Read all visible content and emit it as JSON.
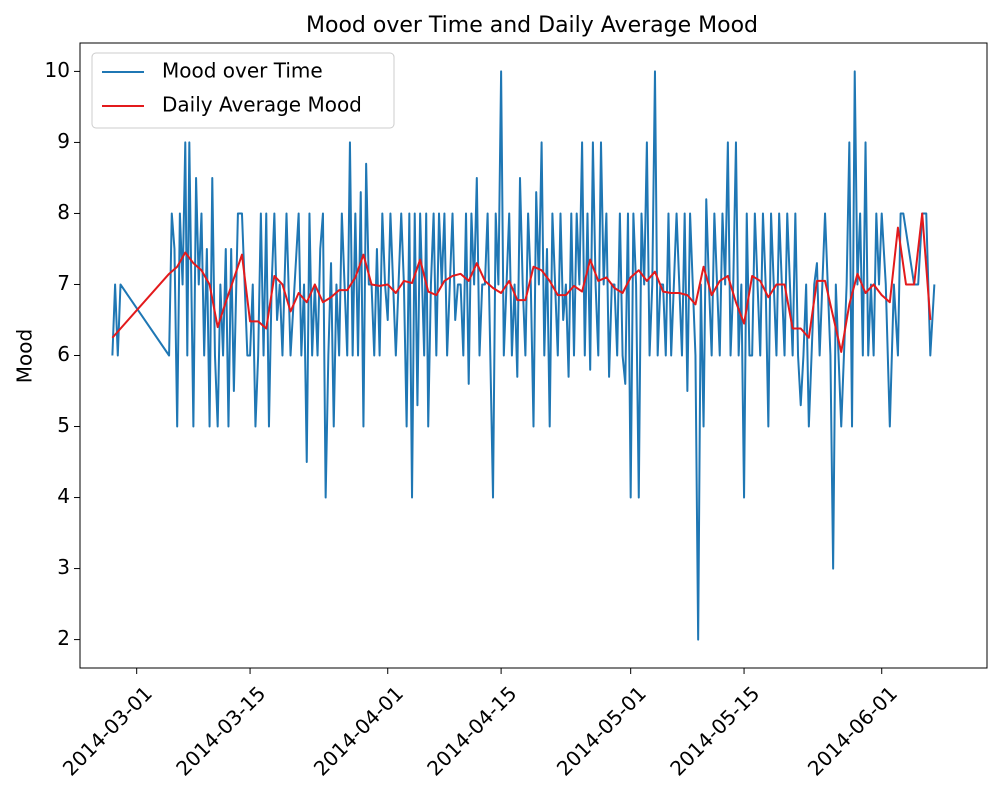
{
  "chart_data": {
    "type": "line",
    "title": "Mood over Time and Daily Average Mood",
    "y_label": "Mood",
    "xlim": [
      "2014-02-22",
      "2014-06-14"
    ],
    "xticks": [
      "2014-03-01",
      "2014-03-15",
      "2014-04-01",
      "2014-04-15",
      "2014-05-01",
      "2014-05-15",
      "2014-06-01"
    ],
    "ylim": [
      1.6,
      10.4
    ],
    "yticks": [
      2,
      3,
      4,
      5,
      6,
      7,
      8,
      9,
      10
    ],
    "grid": false,
    "legend": "upper left",
    "series": [
      {
        "name": "Mood over Time",
        "color": "#1f77b4",
        "x": [
          "2014-02-26",
          "2014-02-26",
          "2014-02-26",
          "2014-02-27",
          "2014-03-05",
          "2014-03-05",
          "2014-03-05",
          "2014-03-06",
          "2014-03-06",
          "2014-03-06",
          "2014-03-07",
          "2014-03-07",
          "2014-03-07",
          "2014-03-07",
          "2014-03-08",
          "2014-03-08",
          "2014-03-08",
          "2014-03-09",
          "2014-03-09",
          "2014-03-09",
          "2014-03-10",
          "2014-03-10",
          "2014-03-10",
          "2014-03-11",
          "2014-03-11",
          "2014-03-11",
          "2014-03-12",
          "2014-03-12",
          "2014-03-12",
          "2014-03-13",
          "2014-03-13",
          "2014-03-14",
          "2014-03-14",
          "2014-03-14",
          "2014-03-15",
          "2014-03-15",
          "2014-03-15",
          "2014-03-16",
          "2014-03-16",
          "2014-03-16",
          "2014-03-17",
          "2014-03-17",
          "2014-03-17",
          "2014-03-18",
          "2014-03-18",
          "2014-03-18",
          "2014-03-19",
          "2014-03-19",
          "2014-03-20",
          "2014-03-20",
          "2014-03-21",
          "2014-03-21",
          "2014-03-21",
          "2014-03-22",
          "2014-03-22",
          "2014-03-22",
          "2014-03-23",
          "2014-03-23",
          "2014-03-23",
          "2014-03-24",
          "2014-03-24",
          "2014-03-24",
          "2014-03-25",
          "2014-03-25",
          "2014-03-25",
          "2014-03-26",
          "2014-03-26",
          "2014-03-26",
          "2014-03-27",
          "2014-03-27",
          "2014-03-27",
          "2014-03-28",
          "2014-03-28",
          "2014-03-28",
          "2014-03-29",
          "2014-03-29",
          "2014-03-29",
          "2014-03-30",
          "2014-03-30",
          "2014-03-30",
          "2014-03-31",
          "2014-03-31",
          "2014-03-31",
          "2014-04-01",
          "2014-04-01",
          "2014-04-01",
          "2014-04-02",
          "2014-04-02",
          "2014-04-02",
          "2014-04-03",
          "2014-04-03",
          "2014-04-03",
          "2014-04-04",
          "2014-04-04",
          "2014-04-04",
          "2014-04-05",
          "2014-04-05",
          "2014-04-05",
          "2014-04-05",
          "2014-04-06",
          "2014-04-06",
          "2014-04-06",
          "2014-04-07",
          "2014-04-07",
          "2014-04-07",
          "2014-04-08",
          "2014-04-08",
          "2014-04-08",
          "2014-04-09",
          "2014-04-09",
          "2014-04-09",
          "2014-04-10",
          "2014-04-10",
          "2014-04-10",
          "2014-04-11",
          "2014-04-11",
          "2014-04-11",
          "2014-04-12",
          "2014-04-12",
          "2014-04-12",
          "2014-04-13",
          "2014-04-13",
          "2014-04-13",
          "2014-04-14",
          "2014-04-14",
          "2014-04-14",
          "2014-04-15",
          "2014-04-15",
          "2014-04-15",
          "2014-04-16",
          "2014-04-16",
          "2014-04-16",
          "2014-04-17",
          "2014-04-17",
          "2014-04-17",
          "2014-04-18",
          "2014-04-18",
          "2014-04-18",
          "2014-04-19",
          "2014-04-19",
          "2014-04-19",
          "2014-04-20",
          "2014-04-20",
          "2014-04-20",
          "2014-04-21",
          "2014-04-21",
          "2014-04-21",
          "2014-04-22",
          "2014-04-22",
          "2014-04-22",
          "2014-04-23",
          "2014-04-23",
          "2014-04-23",
          "2014-04-24",
          "2014-04-24",
          "2014-04-24",
          "2014-04-25",
          "2014-04-25",
          "2014-04-25",
          "2014-04-26",
          "2014-04-26",
          "2014-04-26",
          "2014-04-27",
          "2014-04-27",
          "2014-04-27",
          "2014-04-28",
          "2014-04-28",
          "2014-04-28",
          "2014-04-29",
          "2014-04-29",
          "2014-04-29",
          "2014-04-30",
          "2014-04-30",
          "2014-04-30",
          "2014-05-01",
          "2014-05-01",
          "2014-05-01",
          "2014-05-02",
          "2014-05-02",
          "2014-05-02",
          "2014-05-03",
          "2014-05-03",
          "2014-05-03",
          "2014-05-04",
          "2014-05-04",
          "2014-05-04",
          "2014-05-05",
          "2014-05-05",
          "2014-05-05",
          "2014-05-06",
          "2014-05-06",
          "2014-05-06",
          "2014-05-07",
          "2014-05-07",
          "2014-05-07",
          "2014-05-08",
          "2014-05-08",
          "2014-05-08",
          "2014-05-09",
          "2014-05-09",
          "2014-05-09",
          "2014-05-10",
          "2014-05-10",
          "2014-05-10",
          "2014-05-11",
          "2014-05-11",
          "2014-05-11",
          "2014-05-12",
          "2014-05-12",
          "2014-05-12",
          "2014-05-13",
          "2014-05-13",
          "2014-05-13",
          "2014-05-14",
          "2014-05-14",
          "2014-05-14",
          "2014-05-15",
          "2014-05-15",
          "2014-05-15",
          "2014-05-16",
          "2014-05-16",
          "2014-05-16",
          "2014-05-17",
          "2014-05-17",
          "2014-05-17",
          "2014-05-18",
          "2014-05-18",
          "2014-05-18",
          "2014-05-19",
          "2014-05-19",
          "2014-05-19",
          "2014-05-20",
          "2014-05-20",
          "2014-05-20",
          "2014-05-21",
          "2014-05-21",
          "2014-05-21",
          "2014-05-22",
          "2014-05-22",
          "2014-05-22",
          "2014-05-23",
          "2014-05-23",
          "2014-05-23",
          "2014-05-24",
          "2014-05-24",
          "2014-05-24",
          "2014-05-25",
          "2014-05-25",
          "2014-05-25",
          "2014-05-26",
          "2014-05-26",
          "2014-05-26",
          "2014-05-27",
          "2014-05-27",
          "2014-05-27",
          "2014-05-28",
          "2014-05-28",
          "2014-05-28",
          "2014-05-29",
          "2014-05-29",
          "2014-05-29",
          "2014-05-30",
          "2014-05-30",
          "2014-05-30",
          "2014-05-31",
          "2014-05-31",
          "2014-05-31",
          "2014-06-01",
          "2014-06-01",
          "2014-06-02",
          "2014-06-02",
          "2014-06-03",
          "2014-06-03",
          "2014-06-03",
          "2014-06-05",
          "2014-06-05",
          "2014-06-06",
          "2014-06-06",
          "2014-06-07",
          "2014-06-07"
        ],
        "values": [
          6,
          7,
          6,
          7,
          6,
          8,
          7.5,
          5,
          8,
          7,
          9,
          6,
          9,
          7,
          5,
          8.5,
          7,
          8,
          6,
          7.5,
          5,
          8.5,
          6,
          5,
          7,
          6,
          7.5,
          5,
          7.5,
          5.5,
          8,
          8,
          7,
          6,
          6,
          7,
          5,
          6,
          8,
          6,
          8,
          5,
          7,
          8,
          6.5,
          7,
          6,
          8,
          6,
          7,
          8,
          6,
          7,
          4.5,
          8,
          6,
          7,
          6,
          7.5,
          8,
          4,
          6,
          7.3,
          5,
          7,
          6,
          8,
          7,
          6,
          9,
          6,
          8,
          6,
          8.3,
          5,
          8.7,
          7,
          7,
          6,
          7.5,
          6,
          8,
          7,
          6.5,
          8,
          7,
          6,
          7,
          8,
          7,
          5,
          8,
          4,
          8,
          5.3,
          8,
          7,
          6,
          8,
          5,
          7,
          8,
          6,
          8,
          7,
          8,
          6,
          7,
          8,
          6.5,
          7,
          7,
          6,
          8,
          5.6,
          8,
          7,
          8.5,
          6,
          7,
          7,
          8,
          6,
          4,
          8,
          7,
          10,
          6,
          7,
          8,
          6,
          7,
          5.7,
          8.5,
          7,
          6,
          8,
          7,
          5,
          8.3,
          7,
          9,
          6,
          7.5,
          5,
          8,
          7,
          6,
          8,
          6.5,
          7,
          5.7,
          8,
          6,
          8,
          7,
          9,
          6,
          8,
          5.8,
          9,
          7,
          6,
          9,
          7,
          8,
          5.7,
          7,
          7,
          6,
          8,
          6,
          5.6,
          8,
          4,
          8,
          7,
          4,
          8,
          7,
          9,
          6,
          7,
          10,
          6,
          7,
          7,
          6,
          8,
          6,
          7,
          8,
          7,
          6,
          8,
          5.5,
          8,
          7,
          6,
          2,
          7,
          5,
          8.2,
          7,
          6,
          8,
          7,
          6,
          8,
          7,
          9,
          6,
          7,
          9,
          6,
          7,
          4,
          8,
          6,
          6,
          8,
          7,
          6,
          8,
          7,
          5,
          8,
          7,
          6,
          8,
          7,
          6,
          8,
          7,
          6,
          8,
          6,
          5.3,
          6,
          7,
          5,
          6,
          7,
          7.3,
          6,
          7,
          8,
          7,
          6,
          3,
          7,
          6,
          5,
          6,
          7,
          9,
          5,
          10,
          7,
          8,
          6,
          9,
          6,
          7,
          6,
          8,
          7,
          8,
          7,
          5,
          7,
          6,
          8,
          8,
          7,
          7,
          8,
          8,
          6,
          7
        ]
      },
      {
        "name": "Daily Average Mood",
        "color": "#e31a1c",
        "x": [
          "2014-02-26",
          "2014-03-05",
          "2014-03-06",
          "2014-03-07",
          "2014-03-08",
          "2014-03-09",
          "2014-03-10",
          "2014-03-11",
          "2014-03-12",
          "2014-03-14",
          "2014-03-15",
          "2014-03-16",
          "2014-03-17",
          "2014-03-18",
          "2014-03-19",
          "2014-03-20",
          "2014-03-21",
          "2014-03-22",
          "2014-03-23",
          "2014-03-24",
          "2014-03-25",
          "2014-03-26",
          "2014-03-27",
          "2014-03-28",
          "2014-03-29",
          "2014-03-30",
          "2014-03-31",
          "2014-04-01",
          "2014-04-02",
          "2014-04-03",
          "2014-04-04",
          "2014-04-05",
          "2014-04-06",
          "2014-04-07",
          "2014-04-08",
          "2014-04-09",
          "2014-04-10",
          "2014-04-11",
          "2014-04-12",
          "2014-04-13",
          "2014-04-14",
          "2014-04-15",
          "2014-04-16",
          "2014-04-17",
          "2014-04-18",
          "2014-04-19",
          "2014-04-20",
          "2014-04-21",
          "2014-04-22",
          "2014-04-23",
          "2014-04-24",
          "2014-04-25",
          "2014-04-26",
          "2014-04-27",
          "2014-04-28",
          "2014-04-29",
          "2014-04-30",
          "2014-05-01",
          "2014-05-02",
          "2014-05-03",
          "2014-05-04",
          "2014-05-05",
          "2014-05-06",
          "2014-05-07",
          "2014-05-08",
          "2014-05-09",
          "2014-05-10",
          "2014-05-11",
          "2014-05-12",
          "2014-05-13",
          "2014-05-14",
          "2014-05-15",
          "2014-05-16",
          "2014-05-17",
          "2014-05-18",
          "2014-05-19",
          "2014-05-20",
          "2014-05-21",
          "2014-05-22",
          "2014-05-23",
          "2014-05-24",
          "2014-05-25",
          "2014-05-26",
          "2014-05-27",
          "2014-05-28",
          "2014-05-29",
          "2014-05-30",
          "2014-05-31",
          "2014-06-01",
          "2014-06-02",
          "2014-06-03",
          "2014-06-04",
          "2014-06-05",
          "2014-06-06",
          "2014-06-07"
        ],
        "values": [
          6.25,
          7.15,
          7.25,
          7.45,
          7.3,
          7.2,
          7.0,
          6.4,
          6.75,
          7.42,
          6.48,
          6.48,
          6.38,
          7.12,
          7.0,
          6.62,
          6.88,
          6.75,
          7.0,
          6.75,
          6.82,
          6.92,
          6.92,
          7.1,
          7.42,
          7.0,
          6.98,
          7.0,
          6.88,
          7.05,
          7.02,
          7.35,
          6.9,
          6.85,
          7.05,
          7.12,
          7.15,
          7.05,
          7.3,
          7.05,
          6.95,
          6.88,
          7.05,
          6.78,
          6.78,
          7.25,
          7.2,
          7.05,
          6.85,
          6.85,
          6.98,
          6.9,
          7.35,
          7.05,
          7.1,
          6.95,
          6.88,
          7.1,
          7.2,
          7.05,
          7.18,
          6.9,
          6.88,
          6.88,
          6.85,
          6.72,
          7.25,
          6.85,
          7.05,
          7.12,
          6.75,
          6.45,
          7.12,
          7.05,
          6.82,
          7.0,
          7.0,
          6.38,
          6.38,
          6.25,
          7.05,
          7.05,
          6.55,
          6.05,
          6.72,
          7.15,
          6.88,
          7.0,
          6.85,
          6.75,
          7.8,
          7.0,
          7.0,
          8.0,
          6.5
        ]
      }
    ]
  }
}
